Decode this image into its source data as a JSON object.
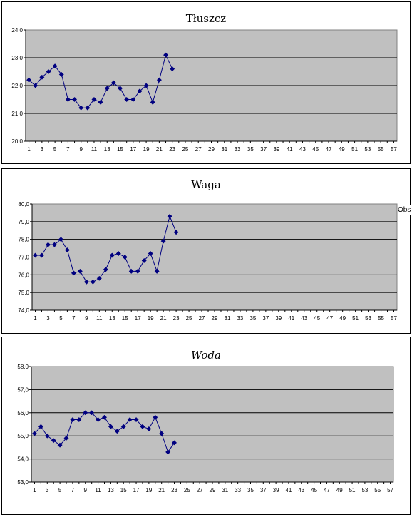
{
  "colors": {
    "plot_bg": "#c0c0c0",
    "series": "#000080",
    "grid": "#000000"
  },
  "side_label": "Obs",
  "chart_data": [
    {
      "type": "line",
      "title": "Tłuszcz",
      "x": [
        1,
        2,
        3,
        4,
        5,
        6,
        7,
        8,
        9,
        10,
        11,
        12,
        13,
        14,
        15,
        16,
        17,
        18,
        19,
        20,
        21,
        22,
        23
      ],
      "values": [
        22.2,
        22.0,
        22.3,
        22.5,
        22.7,
        22.4,
        21.5,
        21.5,
        21.2,
        21.2,
        21.5,
        21.4,
        21.9,
        22.1,
        21.9,
        21.5,
        21.5,
        21.8,
        22.0,
        21.4,
        22.2,
        23.1,
        22.6
      ],
      "xlim": [
        1,
        57
      ],
      "x_ticks": [
        "1",
        "3",
        "5",
        "7",
        "9",
        "11",
        "13",
        "15",
        "17",
        "19",
        "21",
        "23",
        "25",
        "27",
        "29",
        "31",
        "33",
        "35",
        "37",
        "39",
        "41",
        "43",
        "45",
        "47",
        "49",
        "51",
        "53",
        "55",
        "57"
      ],
      "ylim": [
        20,
        24
      ],
      "y_ticks": [
        "20,0",
        "21,0",
        "22,0",
        "23,0",
        "24,0"
      ],
      "grid": true
    },
    {
      "type": "line",
      "title": "Waga",
      "x": [
        1,
        2,
        3,
        4,
        5,
        6,
        7,
        8,
        9,
        10,
        11,
        12,
        13,
        14,
        15,
        16,
        17,
        18,
        19,
        20,
        21,
        22,
        23
      ],
      "values": [
        77.1,
        77.1,
        77.7,
        77.7,
        78.0,
        77.4,
        76.1,
        76.2,
        75.6,
        75.6,
        75.8,
        76.3,
        77.1,
        77.2,
        77.0,
        76.2,
        76.2,
        76.8,
        77.2,
        76.2,
        77.9,
        79.3,
        78.4
      ],
      "xlim": [
        1,
        57
      ],
      "x_ticks": [
        "1",
        "3",
        "5",
        "7",
        "9",
        "11",
        "13",
        "15",
        "17",
        "19",
        "21",
        "23",
        "25",
        "27",
        "29",
        "31",
        "33",
        "35",
        "37",
        "39",
        "41",
        "43",
        "45",
        "47",
        "49",
        "51",
        "53",
        "55",
        "57"
      ],
      "ylim": [
        74,
        80
      ],
      "y_ticks": [
        "74,0",
        "75,0",
        "76,0",
        "77,0",
        "78,0",
        "79,0",
        "80,0"
      ],
      "grid": true
    },
    {
      "type": "line",
      "title": "Woda",
      "x": [
        1,
        2,
        3,
        4,
        5,
        6,
        7,
        8,
        9,
        10,
        11,
        12,
        13,
        14,
        15,
        16,
        17,
        18,
        19,
        20,
        21,
        22,
        23
      ],
      "values": [
        55.1,
        55.4,
        55.0,
        54.8,
        54.6,
        54.9,
        55.7,
        55.7,
        56.0,
        56.0,
        55.7,
        55.8,
        55.4,
        55.2,
        55.4,
        55.7,
        55.7,
        55.4,
        55.3,
        55.8,
        55.1,
        54.3,
        54.7
      ],
      "xlim": [
        1,
        57
      ],
      "x_ticks": [
        "1",
        "3",
        "5",
        "7",
        "9",
        "11",
        "13",
        "15",
        "17",
        "19",
        "21",
        "23",
        "25",
        "27",
        "29",
        "31",
        "33",
        "35",
        "37",
        "39",
        "41",
        "43",
        "45",
        "47",
        "49",
        "51",
        "53",
        "55",
        "57"
      ],
      "ylim": [
        53,
        58
      ],
      "y_ticks": [
        "53,0",
        "54,0",
        "55,0",
        "56,0",
        "57,0",
        "58,0"
      ],
      "grid": true
    }
  ]
}
